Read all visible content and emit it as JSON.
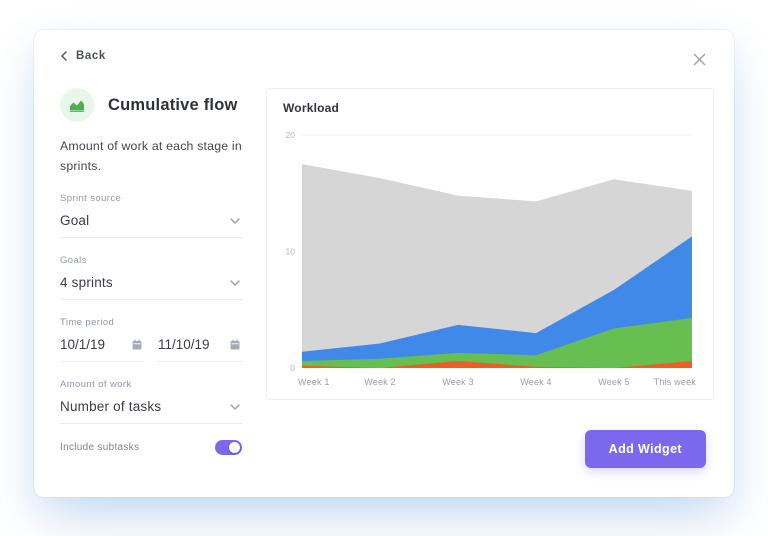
{
  "colors": {
    "accent": "#7b68ee",
    "icon_green": "#4caf50",
    "icon_bg": "#e9f6ea",
    "area_gray": "#d6d6d6",
    "area_blue": "#4189e8",
    "area_green": "#66bf50",
    "area_orange": "#ea5f29"
  },
  "modal": {
    "back_label": "Back"
  },
  "widget": {
    "icon": "area-chart-icon",
    "title": "Cumulative flow",
    "description": "Amount of work at each stage in sprints."
  },
  "form": {
    "sprint_source": {
      "label": "Sprint source",
      "value": "Goal"
    },
    "goals": {
      "label": "Goals",
      "value": "4 sprints"
    },
    "time_period": {
      "label": "Time period",
      "start": "10/1/19",
      "end": "11/10/19"
    },
    "amount_of_work": {
      "label": "Amount of work",
      "value": "Number of tasks"
    },
    "include_subtasks": {
      "label": "Include subtasks",
      "enabled": true
    }
  },
  "footer": {
    "add_widget_label": "Add Widget"
  },
  "chart_data": {
    "type": "area",
    "stacked": true,
    "title": "Workload",
    "categories": [
      "Week 1",
      "Week 2",
      "Week 3",
      "Week 4",
      "Week 5",
      "This week"
    ],
    "series": [
      {
        "name": "orange",
        "color": "#ea5f29",
        "values": [
          0.2,
          0,
          0.6,
          0.1,
          0,
          0.6
        ]
      },
      {
        "name": "green",
        "color": "#66bf50",
        "values": [
          0.4,
          0.8,
          0.7,
          1.0,
          3.4,
          3.7
        ]
      },
      {
        "name": "blue",
        "color": "#4189e8",
        "values": [
          0.8,
          1.3,
          2.4,
          1.9,
          3.3,
          7.0
        ]
      },
      {
        "name": "gray",
        "color": "#d6d6d6",
        "values": [
          16.1,
          14.2,
          11.1,
          11.3,
          9.5,
          3.9
        ]
      }
    ],
    "totals": [
      17.5,
      16.3,
      14.8,
      14.3,
      16.2,
      15.2
    ],
    "xlabel": "",
    "ylabel": "",
    "ylim": [
      0,
      20
    ],
    "yticks": [
      0,
      10,
      20
    ],
    "legend": "none",
    "grid": "horizontal"
  }
}
